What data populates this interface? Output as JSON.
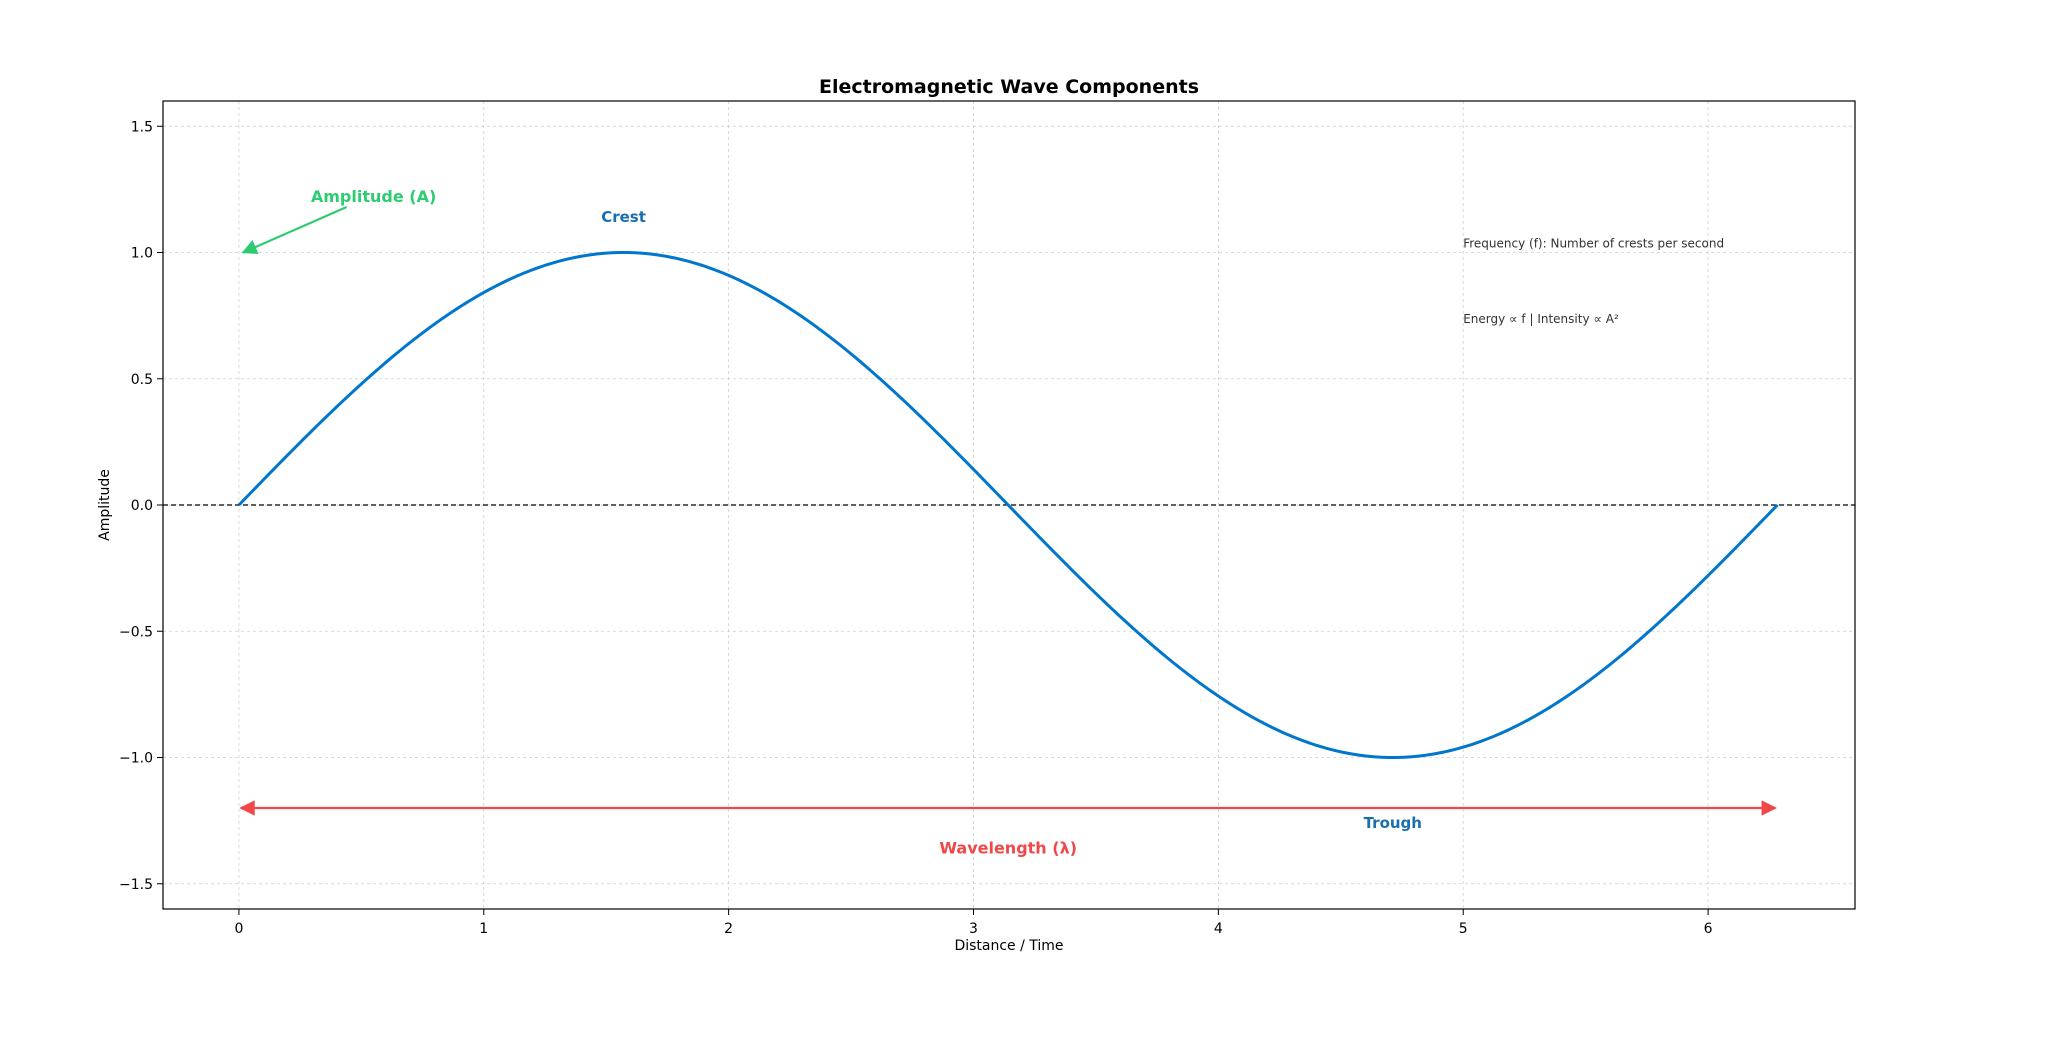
{
  "chart_data": {
    "type": "line",
    "title": "Electromagnetic Wave Components",
    "xlabel": "Distance / Time",
    "ylabel": "Amplitude",
    "xlim": [
      -0.31,
      6.6
    ],
    "ylim": [
      -1.6,
      1.6
    ],
    "xticks": [
      0,
      1,
      2,
      3,
      4,
      5,
      6
    ],
    "xtick_labels": [
      "0",
      "1",
      "2",
      "3",
      "4",
      "5",
      "6"
    ],
    "yticks": [
      1.5,
      1.0,
      0.5,
      0.0,
      -0.5,
      -1.0,
      -1.5
    ],
    "ytick_labels": [
      "1.5",
      "1.0",
      "0.5",
      "0.0",
      "−0.5",
      "−1.0",
      "−1.5"
    ],
    "grid": true,
    "series": [
      {
        "function": "sin",
        "x_start": 0,
        "x_end": 6.2832,
        "x": [
          0,
          0.5236,
          1.0472,
          1.5708,
          2.0944,
          2.618,
          3.1416,
          3.6652,
          4.1888,
          4.7124,
          5.236,
          5.7596,
          6.2832
        ],
        "y": [
          0,
          0.5,
          0.866,
          1.0,
          0.866,
          0.5,
          0,
          -0.5,
          -0.866,
          -1.0,
          -0.866,
          -0.5,
          0
        ],
        "color": "#0077cc"
      }
    ],
    "reference_line": {
      "y": 0,
      "style": "dashed",
      "color": "#000000"
    },
    "annotations": {
      "crest": {
        "text": "Crest",
        "x": 1.5708,
        "y": 1.12,
        "color": "#1a6faf"
      },
      "trough": {
        "text": "Trough",
        "x": 4.7124,
        "y": -1.28,
        "color": "#1a6faf"
      },
      "amplitude": {
        "text": "Amplitude (A)",
        "x": 0.55,
        "y": 1.2,
        "arrow_to": [
          0,
          1.0
        ],
        "arrow_from": [
          0.44,
          1.18
        ],
        "color": "#2ecc71"
      },
      "wavelength": {
        "text": "Wavelength (λ)",
        "x": 3.1416,
        "y": -1.38,
        "arrow_from": [
          0,
          -1.2
        ],
        "arrow_to": [
          6.2832,
          -1.2
        ],
        "color": "#f04848"
      },
      "frequency": {
        "text": "Frequency (f): Number of crests per second",
        "x": 5.0,
        "y": 1.02
      },
      "energy": {
        "text": "Energy ∝ f   |   Intensity ∝ A²",
        "x": 5.0,
        "y": 0.72
      }
    }
  }
}
